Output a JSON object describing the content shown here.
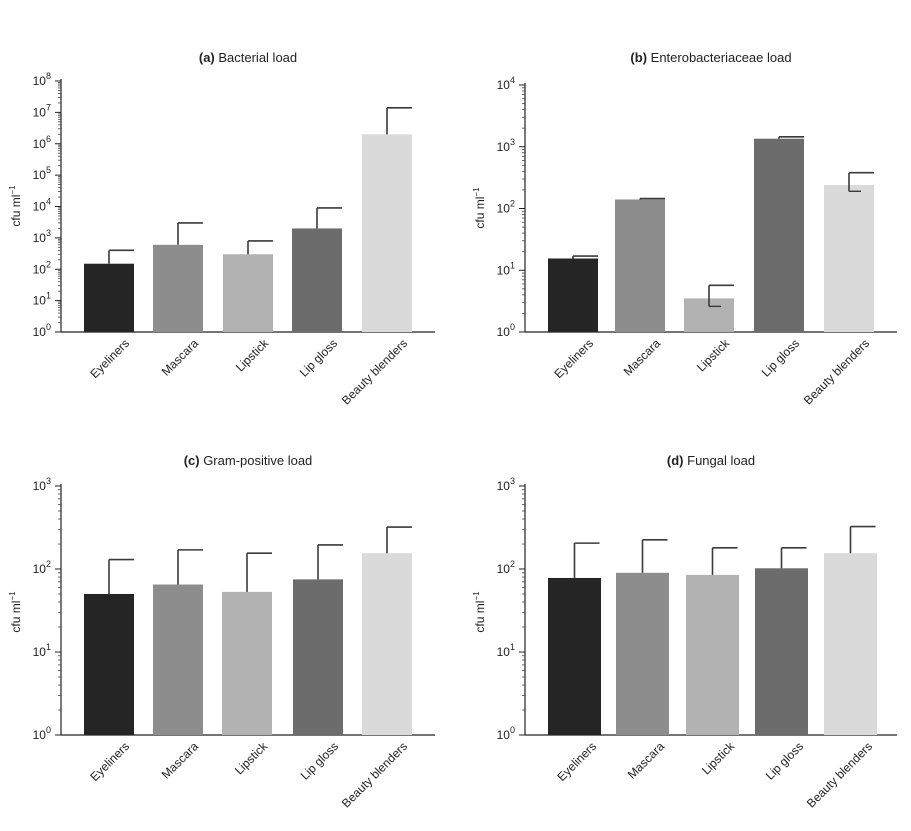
{
  "chart_data": [
    {
      "type": "bar",
      "title_bold": "(a)",
      "title_text": "Bacterial load",
      "ylabel": "cfu ml",
      "ylabel_sup": "−1",
      "yscale": "log",
      "ylim_exp": [
        0,
        8
      ],
      "tick_exps": [
        0,
        1,
        2,
        3,
        4,
        5,
        6,
        7,
        8
      ],
      "categories": [
        "Eyeliners",
        "Mascara",
        "Lipstick",
        "Lip gloss",
        "Beauty blenders"
      ],
      "values": [
        150,
        600,
        300,
        2000,
        2000000
      ],
      "error_upper": [
        400,
        3000,
        800,
        9000,
        14000000
      ],
      "error_lower": [
        150,
        600,
        300,
        2000,
        2000000
      ]
    },
    {
      "type": "bar",
      "title_bold": "(b)",
      "title_text": "Enterobacteriaceae load",
      "ylabel": "cfu ml",
      "ylabel_sup": "−1",
      "yscale": "log",
      "ylim_exp": [
        0,
        4
      ],
      "tick_exps": [
        0,
        1,
        2,
        3,
        4
      ],
      "categories": [
        "Eyeliners",
        "Mascara",
        "Lipstick",
        "Lip gloss",
        "Beauty blenders"
      ],
      "values": [
        15.5,
        140,
        3.5,
        1350,
        240
      ],
      "error_upper": [
        17,
        145,
        5.7,
        1450,
        380
      ],
      "error_lower": [
        15.5,
        140,
        2.6,
        1350,
        190
      ]
    },
    {
      "type": "bar",
      "title_bold": "(c)",
      "title_text": "Gram-positive load",
      "ylabel": "cfu ml",
      "ylabel_sup": "−1",
      "yscale": "log",
      "ylim_exp": [
        0,
        3
      ],
      "tick_exps": [
        0,
        1,
        2,
        3
      ],
      "categories": [
        "Eyeliners",
        "Mascara",
        "Lipstick",
        "Lip gloss",
        "Beauty blenders"
      ],
      "values": [
        50,
        65,
        53,
        75,
        155
      ],
      "error_upper": [
        130,
        170,
        155,
        195,
        320
      ],
      "error_lower": [
        50,
        65,
        53,
        75,
        155
      ]
    },
    {
      "type": "bar",
      "title_bold": "(d)",
      "title_text": "Fungal load",
      "ylabel": "cfu ml",
      "ylabel_sup": "−1",
      "yscale": "log",
      "ylim_exp": [
        0,
        3
      ],
      "tick_exps": [
        0,
        1,
        2,
        3
      ],
      "categories": [
        "Eyeliners",
        "Mascara",
        "Lipstick",
        "Lip gloss",
        "Beauty blenders"
      ],
      "values": [
        78,
        90,
        85,
        102,
        155
      ],
      "error_upper": [
        205,
        225,
        180,
        180,
        325
      ],
      "error_lower": [
        78,
        90,
        85,
        102,
        155
      ]
    }
  ],
  "bar_colors": [
    "#252525",
    "#8d8d8d",
    "#b2b2b2",
    "#6c6c6c",
    "#dadada"
  ]
}
